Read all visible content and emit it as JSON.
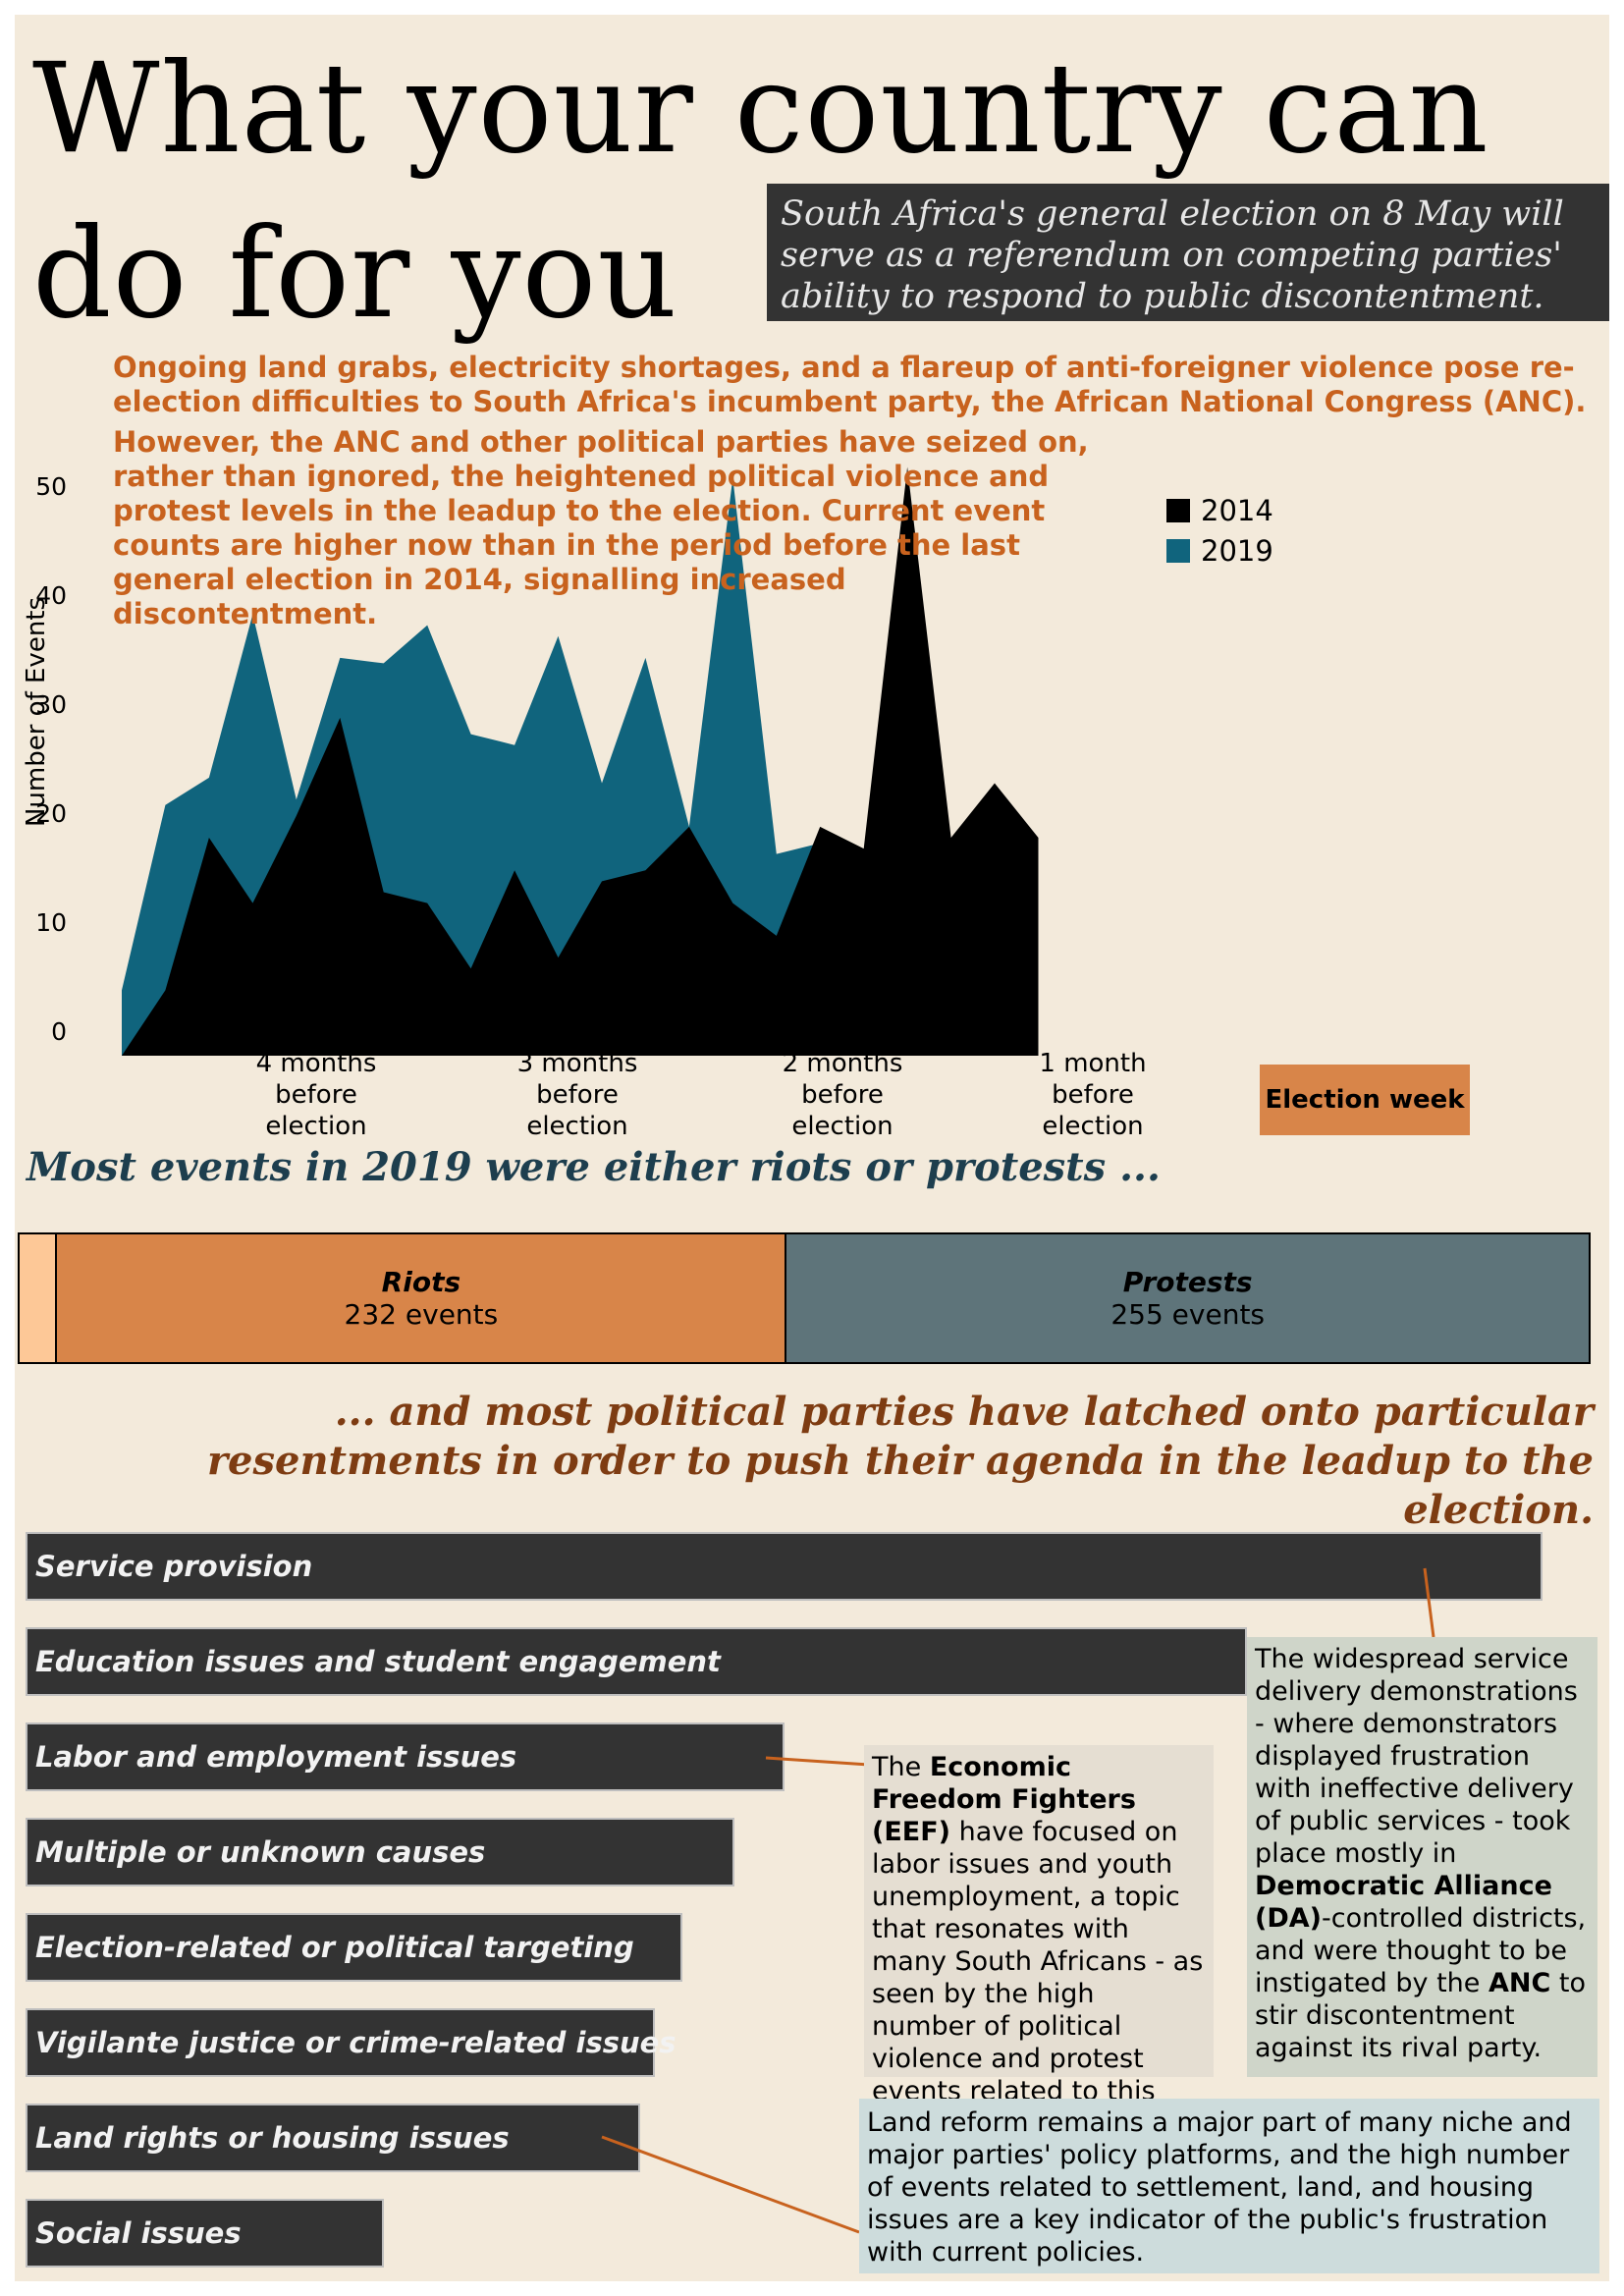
{
  "title": "What your country can do for you",
  "subtitle": "South Africa's general election on 8 May will serve as a referendum on competing parties' ability to respond to public discontentment.",
  "intro_line": "Ongoing land grabs, electricity shortages, and a flareup of anti-foreigner violence pose re-election difficulties to South Africa's incumbent party, the African National Congress (ANC).",
  "intro_paragraph": "However, the ANC and other political parties have seized on, rather than ignored, the heightened political violence and protest levels in the leadup to the election. Current event counts are higher now than in the period before the last general election in 2014, signalling increased discontentment.",
  "colors": {
    "c2014": "#000000",
    "c2019": "#10647d",
    "riots": "#d88549",
    "protests": "#5e747a",
    "other": "#fdc897",
    "accent": "#c8621e"
  },
  "chart_data": {
    "type": "area",
    "ylabel": "Number of Events",
    "ylim": [
      0,
      55
    ],
    "yticks": [
      0,
      10,
      20,
      30,
      40,
      50
    ],
    "x_tick_labels": [
      "4 months before election",
      "3 months before election",
      "2 months before election",
      "1 month before election",
      "Election week"
    ],
    "x_tick_weeks": [
      2,
      6,
      10,
      14,
      19
    ],
    "series": [
      {
        "name": "2014",
        "values": [
          0,
          6,
          20,
          14,
          22,
          31,
          15,
          14,
          8,
          17,
          9,
          16,
          17,
          21,
          14,
          11,
          21,
          19,
          54,
          20,
          25,
          20
        ]
      },
      {
        "name": "2019",
        "values": [
          6,
          23,
          25.5,
          40.5,
          23.5,
          36.5,
          36,
          39.5,
          29.5,
          28.5,
          38.5,
          25,
          36.5,
          21,
          53,
          18.5,
          19.5
        ]
      }
    ],
    "legend": {
      "position": "top-right",
      "entries": [
        "2014",
        "2019"
      ]
    }
  },
  "section2_heading": "Most events in 2019 were either riots or protests ...",
  "event_types": [
    {
      "label": "",
      "count": 12,
      "color": "#fdc897"
    },
    {
      "label": "Riots",
      "count_text": "232 events",
      "count": 232,
      "color": "#d88549"
    },
    {
      "label": "Protests",
      "count_text": "255 events",
      "count": 255,
      "color": "#5e747a"
    }
  ],
  "section3_heading": "... and most political parties have latched onto particular resentments in order to push their agenda in the leadup to the election.",
  "issues": [
    {
      "label": "Service provision",
      "share": 1.0
    },
    {
      "label": "Education issues and student engagement",
      "share": 0.805
    },
    {
      "label": "Labor and employment issues",
      "share": 0.5
    },
    {
      "label": "Multiple or unknown causes",
      "share": 0.467
    },
    {
      "label": "Election-related or political targeting",
      "share": 0.433
    },
    {
      "label": "Vigilante justice or crime-related issues",
      "share": 0.415
    },
    {
      "label": "Land rights or housing issues",
      "share": 0.405
    },
    {
      "label": "Social issues",
      "share": 0.236
    }
  ],
  "notes": {
    "eef": {
      "pre": "The ",
      "bold": "Economic Freedom Fighters (EEF)",
      "post": "  have focused on labor issues and youth unemployment, a topic that resonates with many South Africans - as seen by the high number of political violence and protest events related to this issue."
    },
    "service": {
      "t1": "The widespread service delivery demonstrations - where demonstrators displayed frustration with ineffective delivery of public services - took place mostly in ",
      "b1": "Democratic Alliance (DA)",
      "t2": "-controlled districts, and were thought to be instigated by the ",
      "b2": "ANC",
      "t3": " to stir discontentment against its rival party."
    },
    "land": "Land reform remains a major part of many niche and major parties' policy platforms, and the high number of events related to settlement, land, and housing issues are a key indicator of the public's frustration with current policies."
  }
}
